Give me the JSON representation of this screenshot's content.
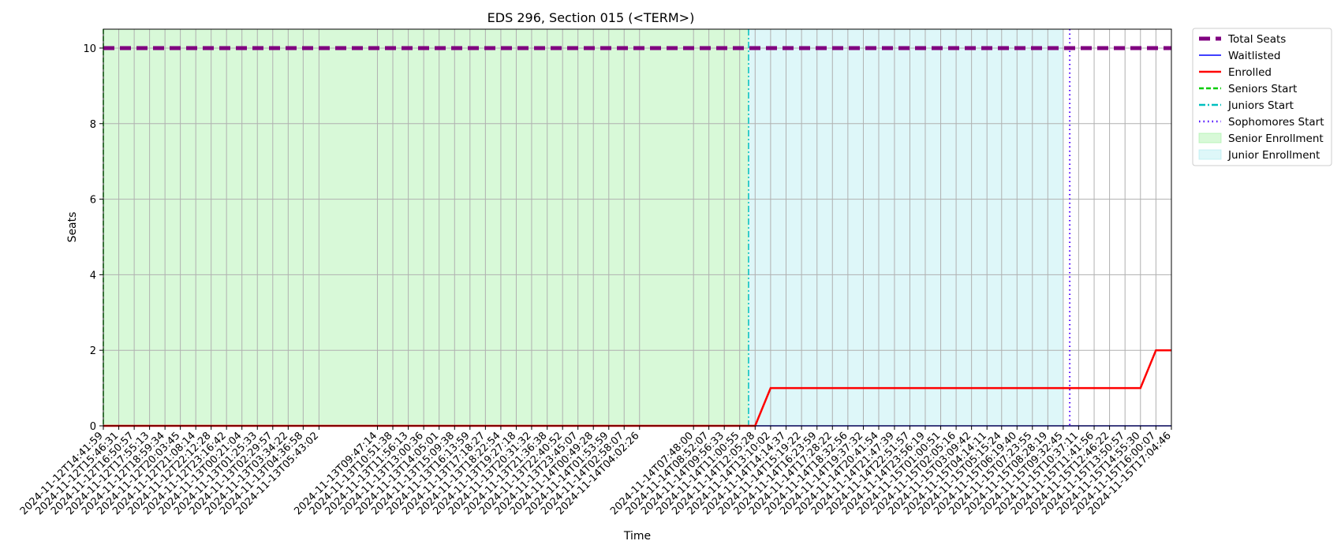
{
  "chart_data": {
    "type": "line",
    "title": "EDS 296, Section 015 (<TERM>)",
    "xlabel": "Time",
    "ylabel": "Seats",
    "ylim": [
      0,
      10.5
    ],
    "yticks": [
      0,
      2,
      4,
      6,
      8,
      10
    ],
    "grid": true,
    "legend_position": "outside-top-right",
    "x": [
      "2024-11-12T14:41:59",
      "2024-11-12T15:46:31",
      "2024-11-12T16:50:57",
      "2024-11-12T17:55:13",
      "2024-11-12T18:59:34",
      "2024-11-12T20:03:45",
      "2024-11-12T21:08:14",
      "2024-11-12T22:12:28",
      "2024-11-12T23:16:42",
      "2024-11-13T00:21:04",
      "2024-11-13T01:25:33",
      "2024-11-13T02:29:57",
      "2024-11-13T03:34:22",
      "2024-11-13T04:36:58",
      "2024-11-13T05:43:02",
      "2024-11-13T09:47:14",
      "2024-11-13T10:51:38",
      "2024-11-13T11:56:13",
      "2024-11-13T13:00:36",
      "2024-11-13T14:05:01",
      "2024-11-13T15:09:38",
      "2024-11-13T16:13:59",
      "2024-11-13T17:18:27",
      "2024-11-13T18:22:54",
      "2024-11-13T19:27:18",
      "2024-11-13T20:31:32",
      "2024-11-13T21:36:38",
      "2024-11-13T22:40:52",
      "2024-11-13T23:45:07",
      "2024-11-14T00:49:28",
      "2024-11-14T01:53:59",
      "2024-11-14T02:58:07",
      "2024-11-14T04:02:26",
      "2024-11-14T07:48:00",
      "2024-11-14T08:52:07",
      "2024-11-14T09:56:33",
      "2024-11-14T11:00:55",
      "2024-11-14T12:05:28",
      "2024-11-14T13:10:02",
      "2024-11-14T14:14:37",
      "2024-11-14T15:19:22",
      "2024-11-14T16:23:59",
      "2024-11-14T17:28:22",
      "2024-11-14T18:32:56",
      "2024-11-14T19:37:32",
      "2024-11-14T20:41:54",
      "2024-11-14T21:47:39",
      "2024-11-14T22:51:57",
      "2024-11-14T23:56:19",
      "2024-11-15T01:00:51",
      "2024-11-15T02:05:16",
      "2024-11-15T03:09:42",
      "2024-11-15T04:14:11",
      "2024-11-15T05:15:24",
      "2024-11-15T06:19:40",
      "2024-11-15T07:23:55",
      "2024-11-15T08:28:19",
      "2024-11-15T09:32:45",
      "2024-11-15T10:37:11",
      "2024-11-15T11:41:56",
      "2024-11-15T12:46:22",
      "2024-11-15T13:50:57",
      "2024-11-15T14:55:30",
      "2024-11-15T16:00:07",
      "2024-11-15T17:04:46"
    ],
    "series": [
      {
        "name": "Total Seats",
        "color": "#800080",
        "style": "dashed-thick",
        "values": [
          10,
          10,
          10,
          10,
          10,
          10,
          10,
          10,
          10,
          10,
          10,
          10,
          10,
          10,
          10,
          10,
          10,
          10,
          10,
          10,
          10,
          10,
          10,
          10,
          10,
          10,
          10,
          10,
          10,
          10,
          10,
          10,
          10,
          10,
          10,
          10,
          10,
          10,
          10,
          10,
          10,
          10,
          10,
          10,
          10,
          10,
          10,
          10,
          10,
          10,
          10,
          10,
          10,
          10,
          10,
          10,
          10,
          10,
          10,
          10,
          10,
          10,
          10,
          10,
          10
        ]
      },
      {
        "name": "Waitlisted",
        "color": "#0000ff",
        "style": "solid-thin",
        "values": [
          0,
          0,
          0,
          0,
          0,
          0,
          0,
          0,
          0,
          0,
          0,
          0,
          0,
          0,
          0,
          0,
          0,
          0,
          0,
          0,
          0,
          0,
          0,
          0,
          0,
          0,
          0,
          0,
          0,
          0,
          0,
          0,
          0,
          0,
          0,
          0,
          0,
          0,
          0,
          0,
          0,
          0,
          0,
          0,
          0,
          0,
          0,
          0,
          0,
          0,
          0,
          0,
          0,
          0,
          0,
          0,
          0,
          0,
          0,
          0,
          0,
          0,
          0,
          0,
          0
        ]
      },
      {
        "name": "Enrolled",
        "color": "#ff0000",
        "style": "solid",
        "values": [
          0,
          0,
          0,
          0,
          0,
          0,
          0,
          0,
          0,
          0,
          0,
          0,
          0,
          0,
          0,
          0,
          0,
          0,
          0,
          0,
          0,
          0,
          0,
          0,
          0,
          0,
          0,
          0,
          0,
          0,
          0,
          0,
          0,
          0,
          0,
          0,
          0,
          0,
          1,
          1,
          1,
          1,
          1,
          1,
          1,
          1,
          1,
          1,
          1,
          1,
          1,
          1,
          1,
          1,
          1,
          1,
          1,
          1,
          1,
          1,
          1,
          1,
          1,
          2,
          2
        ]
      }
    ],
    "markers": [
      {
        "name": "Seniors Start",
        "color": "#00cc00",
        "style": "dashed",
        "x": "2024-11-12T14:41:59"
      },
      {
        "name": "Juniors Start",
        "color": "#00bfbf",
        "style": "dashdot",
        "x": "2024-11-14T11:38:00"
      },
      {
        "name": "Sophomores Start",
        "color": "#4b00ff",
        "style": "dotted",
        "x": "2024-11-15T10:00:00"
      }
    ],
    "spans": [
      {
        "name": "Senior Enrollment",
        "color": "#90ee90",
        "from": "2024-11-12T14:41:59",
        "to": "2024-11-14T11:38:00"
      },
      {
        "name": "Junior Enrollment",
        "color": "#a0e8ee",
        "from": "2024-11-14T11:38:00",
        "to": "2024-11-15T09:32:45"
      }
    ]
  }
}
